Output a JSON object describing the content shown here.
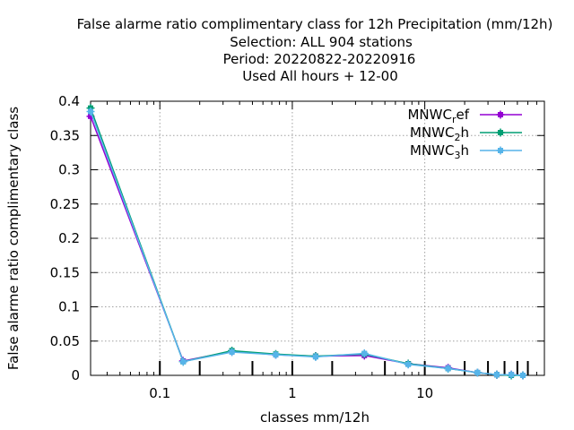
{
  "chart_data": {
    "type": "line",
    "title_lines": [
      "False alarme ratio complimentary class  for 12h Precipitation (mm/12h)",
      "Selection: ALL    904 stations",
      "Period: 20220822-20220916",
      "Used  All hours  + 12-00"
    ],
    "xlabel": "classes mm/12h",
    "ylabel": "False alarme ratio complimentary class",
    "x_scale": "log",
    "xlim": [
      0.03,
      80
    ],
    "ylim": [
      0,
      0.4
    ],
    "x_ticks": [
      {
        "value": 0.1,
        "label": "0.1"
      },
      {
        "value": 1,
        "label": "1"
      },
      {
        "value": 10,
        "label": "10"
      }
    ],
    "y_ticks": [
      {
        "value": 0,
        "label": "0"
      },
      {
        "value": 0.05,
        "label": "0.05"
      },
      {
        "value": 0.1,
        "label": "0.1"
      },
      {
        "value": 0.15,
        "label": "0.15"
      },
      {
        "value": 0.2,
        "label": "0.2"
      },
      {
        "value": 0.25,
        "label": "0.25"
      },
      {
        "value": 0.3,
        "label": "0.3"
      },
      {
        "value": 0.35,
        "label": "0.35"
      },
      {
        "value": 0.4,
        "label": "0.4"
      }
    ],
    "class_marks": [
      0.1,
      0.2,
      0.5,
      1,
      2,
      5,
      10,
      20,
      30,
      40,
      50,
      60
    ],
    "grid": true,
    "legend_position": "top-right",
    "x": [
      0.03,
      0.15,
      0.35,
      0.75,
      1.5,
      3.5,
      7.5,
      15,
      25,
      35,
      45,
      55
    ],
    "series": [
      {
        "name": "MNWC",
        "sub": "r",
        "suffix": "ef",
        "color": "#9400d3",
        "marker": "plus-square",
        "values": [
          0.378,
          0.021,
          0.035,
          0.03,
          0.028,
          0.029,
          0.017,
          0.011,
          0.004,
          0.001,
          0.001,
          0.0
        ]
      },
      {
        "name": "MNWC",
        "sub": "2",
        "suffix": "h",
        "color": "#009e73",
        "marker": "plus-square",
        "values": [
          0.39,
          0.02,
          0.036,
          0.031,
          0.028,
          0.031,
          0.017,
          0.01,
          0.004,
          0.001,
          0.0,
          0.0
        ]
      },
      {
        "name": "MNWC",
        "sub": "3",
        "suffix": "h",
        "color": "#56b4e9",
        "marker": "plus-square",
        "values": [
          0.385,
          0.02,
          0.034,
          0.03,
          0.027,
          0.032,
          0.016,
          0.01,
          0.004,
          0.001,
          0.001,
          0.0
        ]
      }
    ]
  }
}
